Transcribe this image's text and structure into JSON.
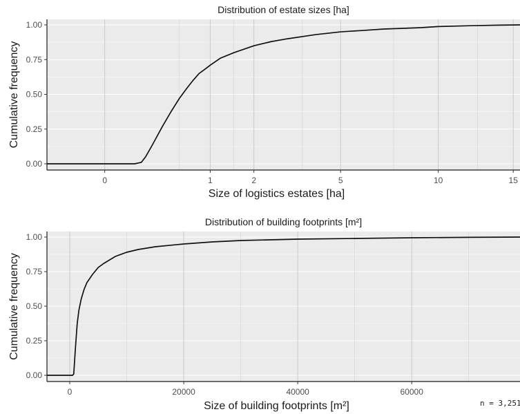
{
  "chart_data": [
    {
      "type": "line",
      "title": "Distribution of estate sizes [ha]",
      "xlabel": "Size of logistics estates [ha]",
      "ylabel": "Cumulative frequency",
      "scale_x": "sqrt",
      "xlim": [
        0,
        15.5
      ],
      "ylim": [
        0,
        1
      ],
      "x_ticks": [
        0,
        1,
        2,
        5,
        10,
        15
      ],
      "x_tick_labels": [
        "0",
        "1",
        "2",
        "5",
        "10",
        "15"
      ],
      "x_minor_ticks": [
        0.5,
        1.5,
        3.5,
        7.5,
        12.5
      ],
      "y_ticks": [
        0,
        0.25,
        0.5,
        0.75,
        1
      ],
      "y_tick_labels": [
        "0.00",
        "0.25",
        "0.50",
        "0.75",
        "1.00"
      ],
      "grid": true,
      "series": [
        {
          "points": [
            [
              -0.3,
              0
            ],
            [
              0.08,
              0
            ],
            [
              0.12,
              0.01
            ],
            [
              0.15,
              0.05
            ],
            [
              0.2,
              0.13
            ],
            [
              0.3,
              0.27
            ],
            [
              0.4,
              0.38
            ],
            [
              0.5,
              0.47
            ],
            [
              0.6,
              0.54
            ],
            [
              0.7,
              0.6
            ],
            [
              0.8,
              0.65
            ],
            [
              0.9,
              0.68
            ],
            [
              1.0,
              0.71
            ],
            [
              1.2,
              0.76
            ],
            [
              1.5,
              0.8
            ],
            [
              2.0,
              0.85
            ],
            [
              2.5,
              0.88
            ],
            [
              3.0,
              0.9
            ],
            [
              4.0,
              0.93
            ],
            [
              5.0,
              0.95
            ],
            [
              6.0,
              0.96
            ],
            [
              7.0,
              0.97
            ],
            [
              8.0,
              0.975
            ],
            [
              9.0,
              0.98
            ],
            [
              10.0,
              0.988
            ],
            [
              12.0,
              0.994
            ],
            [
              14.0,
              0.998
            ],
            [
              15.5,
              1.0
            ]
          ]
        }
      ]
    },
    {
      "type": "line",
      "title": "Distribution of building footprints [m²]",
      "xlabel": "Size of building footprints [m²]",
      "ylabel": "Cumulative frequency",
      "scale_x": "linear",
      "xlim": [
        -4000,
        79000
      ],
      "ylim": [
        0,
        1
      ],
      "x_ticks": [
        0,
        20000,
        40000,
        60000
      ],
      "x_tick_labels": [
        "0",
        "20000",
        "40000",
        "60000"
      ],
      "x_minor_ticks": [
        10000,
        30000,
        50000,
        70000
      ],
      "y_ticks": [
        0,
        0.25,
        0.5,
        0.75,
        1
      ],
      "y_tick_labels": [
        "0.00",
        "0.25",
        "0.50",
        "0.75",
        "1.00"
      ],
      "grid": true,
      "series": [
        {
          "points": [
            [
              -4000,
              0
            ],
            [
              500,
              0
            ],
            [
              700,
              0.01
            ],
            [
              1000,
              0.2
            ],
            [
              1300,
              0.37
            ],
            [
              1600,
              0.47
            ],
            [
              2000,
              0.55
            ],
            [
              2500,
              0.62
            ],
            [
              3000,
              0.67
            ],
            [
              4000,
              0.73
            ],
            [
              5000,
              0.78
            ],
            [
              6000,
              0.81
            ],
            [
              8000,
              0.86
            ],
            [
              10000,
              0.89
            ],
            [
              12000,
              0.91
            ],
            [
              15000,
              0.93
            ],
            [
              20000,
              0.95
            ],
            [
              25000,
              0.965
            ],
            [
              30000,
              0.975
            ],
            [
              40000,
              0.985
            ],
            [
              50000,
              0.99
            ],
            [
              60000,
              0.995
            ],
            [
              70000,
              0.998
            ],
            [
              79000,
              1.0
            ]
          ]
        }
      ]
    }
  ],
  "note": "n = 3,251"
}
